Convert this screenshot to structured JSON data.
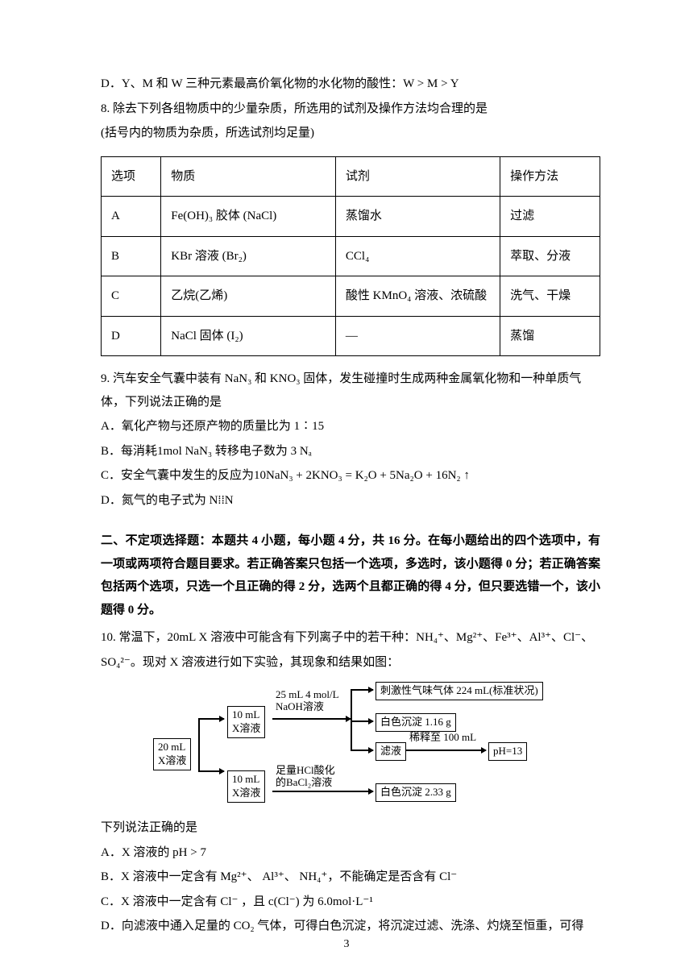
{
  "q7d": "D．Y、M 和 W 三种元素最高价氧化物的水化物的酸性：W > M > Y",
  "q8": {
    "stem1": "8. 除去下列各组物质中的少量杂质，所选用的试剂及操作方法均合理的是",
    "stem2": "(括号内的物质为杂质，所选试剂均足量)",
    "headers": [
      "选项",
      "物质",
      "试剂",
      "操作方法"
    ],
    "rows": [
      [
        "A",
        "Fe(OH)₃ 胶体 (NaCl)",
        "蒸馏水",
        "过滤"
      ],
      [
        "B",
        "KBr 溶液 (Br₂)",
        "CCl₄",
        "萃取、分液"
      ],
      [
        "C",
        "乙烷(乙烯)",
        "酸性 KMnO₄ 溶液、浓硫酸",
        "洗气、干燥"
      ],
      [
        "D",
        "NaCl 固体 (I₂)",
        "—",
        "蒸馏"
      ]
    ]
  },
  "q9": {
    "stem": "9. 汽车安全气囊中装有 NaN₃ 和 KNO₃ 固体，发生碰撞时生成两种金属氧化物和一种单质气体，下列说法正确的是",
    "a": "A．氧化产物与还原产物的质量比为 1∶15",
    "b": "B．每消耗1mol NaN₃ 转移电子数为 3 Nₐ",
    "c": "C．安全气囊中发生的反应为10NaN₃ + 2KNO₃ = K₂O + 5Na₂O + 16N₂ ↑",
    "d": "D．氮气的电子式为 N⁞⁞N"
  },
  "section2": "二、不定项选择题：本题共 4 小题，每小题 4 分，共 16 分。在每小题给出的四个选项中，有一项或两项符合题目要求。若正确答案只包括一个选项，多选时，该小题得 0 分；若正确答案包括两个选项，只选一个且正确的得 2 分，选两个且都正确的得 4 分，但只要选错一个，该小题得 0 分。",
  "q10": {
    "stem1": "10. 常温下，20mL X 溶液中可能含有下列离子中的若干种：NH₄⁺、Mg²⁺、Fe³⁺、Al³⁺、Cl⁻、",
    "stem2": "SO₄²⁻。现对 X 溶液进行如下实验，其现象和结果如图：",
    "tail": "下列说法正确的是",
    "a": "A．X 溶液的 pH > 7",
    "b": "B．X 溶液中一定含有 Mg²⁺、 Al³⁺、 NH₄⁺，不能确定是否含有 Cl⁻",
    "c": "C．X 溶液中一定含有 Cl⁻ ，且 c(Cl⁻) 为 6.0mol·L⁻¹",
    "d": "D．向滤液中通入足量的 CO₂ 气体，可得白色沉淀，将沉淀过滤、洗涤、灼烧至恒重，可得"
  },
  "diagram": {
    "b20": "20 mL\nX溶液",
    "b10a": "10 mL\nX溶液",
    "b10b": "10 mL\nX溶液",
    "naoh1": "25 mL 4 mol/L",
    "naoh2": "NaOH溶液",
    "gas": "刺激性气味气体 224 mL(标准状况)",
    "white1": "白色沉淀 1.16 g",
    "filtrate": "滤液",
    "dilute": "稀释至 100 mL",
    "ph": "pH=13",
    "hcl1": "足量HCl酸化",
    "hcl2": "的BaCl₂溶液",
    "white2": "白色沉淀 2.33 g"
  },
  "page": "3"
}
